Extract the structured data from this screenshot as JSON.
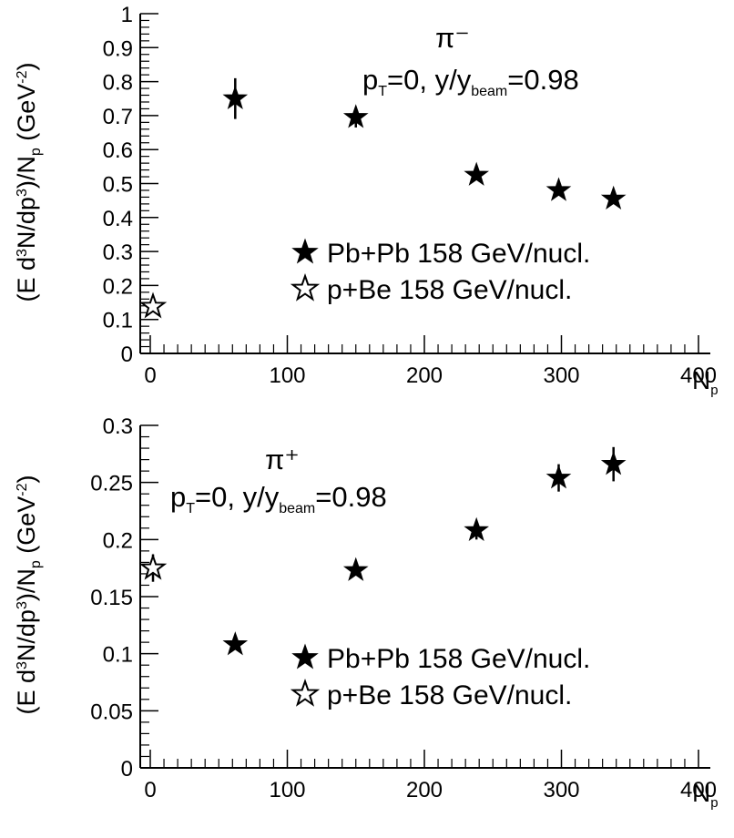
{
  "chart_data": [
    {
      "type": "scatter",
      "panel": "top",
      "xlabel": "N",
      "xlabel_sub": "p",
      "ylabel": "(E d3N/dp3)/Np (GeV-2)",
      "xlim": [
        -10,
        400
      ],
      "ylim": [
        0,
        1
      ],
      "xticks": [
        "0",
        "100",
        "200",
        "300",
        "400"
      ],
      "xtick_values": [
        0,
        100,
        200,
        300,
        400
      ],
      "yticks": [
        "0",
        "0.1",
        "0.2",
        "0.3",
        "0.4",
        "0.5",
        "0.6",
        "0.7",
        "0.8",
        "0.9",
        "1"
      ],
      "ytick_values": [
        0,
        0.1,
        0.2,
        0.3,
        0.4,
        0.5,
        0.6,
        0.7,
        0.8,
        0.9,
        1.0
      ],
      "particle": "π⁻",
      "annotation": {
        "pt": "p",
        "pt_sub": "T",
        "mid": "=0, y/y",
        "ysub": "beam",
        "end": "=0.98"
      },
      "series": [
        {
          "name": "Pb+Pb 158 GeV/nucl.",
          "marker": "filled-star",
          "points": [
            {
              "x": 62,
              "y": 0.75,
              "err": 0.06
            },
            {
              "x": 150,
              "y": 0.695,
              "err": 0.03
            },
            {
              "x": 238,
              "y": 0.525,
              "err": 0.0
            },
            {
              "x": 298,
              "y": 0.48,
              "err": 0.0
            },
            {
              "x": 338,
              "y": 0.455,
              "err": 0.0
            }
          ]
        },
        {
          "name": "p+Be  158 GeV/nucl.",
          "marker": "open-star",
          "points": [
            {
              "x": 2,
              "y": 0.138,
              "err": 0.0
            }
          ]
        }
      ],
      "legend_position": "bottom-right"
    },
    {
      "type": "scatter",
      "panel": "bottom",
      "xlabel": "N",
      "xlabel_sub": "p",
      "ylabel": "(E d3N/dp3)/Np (GeV-2)",
      "xlim": [
        -10,
        400
      ],
      "ylim": [
        0,
        0.3
      ],
      "xticks": [
        "0",
        "100",
        "200",
        "300",
        "400"
      ],
      "xtick_values": [
        0,
        100,
        200,
        300,
        400
      ],
      "yticks": [
        "0",
        "0.05",
        "0.1",
        "0.15",
        "0.2",
        "0.25",
        "0.3"
      ],
      "ytick_values": [
        0,
        0.05,
        0.1,
        0.15,
        0.2,
        0.25,
        0.3
      ],
      "particle": "π⁺",
      "annotation": {
        "pt": "p",
        "pt_sub": "T",
        "mid": "=0, y/y",
        "ysub": "beam",
        "end": "=0.98"
      },
      "series": [
        {
          "name": "Pb+Pb 158 GeV/nucl.",
          "marker": "filled-star",
          "points": [
            {
              "x": 62,
              "y": 0.108,
              "err": 0.0
            },
            {
              "x": 150,
              "y": 0.173,
              "err": 0.0
            },
            {
              "x": 238,
              "y": 0.208,
              "err": 0.008
            },
            {
              "x": 298,
              "y": 0.254,
              "err": 0.012
            },
            {
              "x": 338,
              "y": 0.266,
              "err": 0.015
            }
          ]
        },
        {
          "name": "p+Be  158 GeV/nucl.",
          "marker": "open-star",
          "points": [
            {
              "x": 2,
              "y": 0.175,
              "err": 0.012
            }
          ]
        }
      ],
      "legend_position": "bottom-right"
    }
  ]
}
